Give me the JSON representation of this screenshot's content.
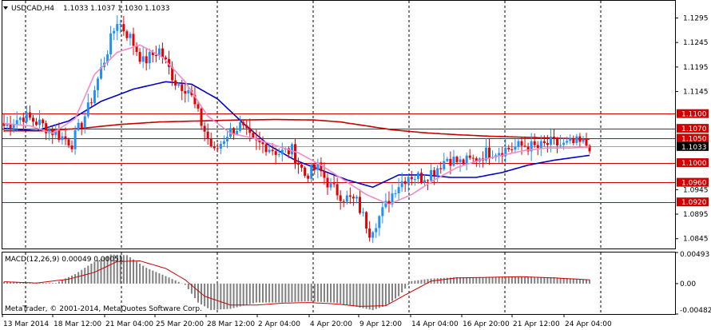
{
  "header": {
    "symbol": "USDCAD,H4",
    "open": "1.1033",
    "high": "1.1037",
    "low": "1.1030",
    "close": "1.1033",
    "collapse_icon": "triangle-down-icon"
  },
  "footer": {
    "copyright": "MetaTrader, © 2001-2014, MetaQuotes Software Corp."
  },
  "colors": {
    "bull": "#1e90ff",
    "bear": "#e60000",
    "ma_fast": "#f08cc8",
    "ma_mid": "#0000c8",
    "ma_slow": "#c80000",
    "level_line": "#d00000",
    "level_label_bg": "#d00000",
    "price_label_bg": "#000000",
    "macd_hist": "#808080",
    "macd_signal": "#d00000",
    "grid_vertical": "#000000",
    "bid_line": "#a0a0a0"
  },
  "chart_data": [
    {
      "type": "candlestick",
      "title": "USDCAD,H4",
      "ylim": [
        1.0825,
        1.133
      ],
      "y_ticks": [
        1.1295,
        1.1245,
        1.1195,
        1.1145,
        1.0945,
        1.0895,
        1.0845
      ],
      "current_price": 1.1033,
      "levels": [
        1.11,
        1.107,
        1.105,
        1.1,
        1.096,
        1.092
      ],
      "x_labels": [
        "13 Mar 2014",
        "18 Mar 12:00",
        "21 Mar 04:00",
        "25 Mar 20:00",
        "28 Mar 12:00",
        "2 Apr 04:00",
        "4 Apr 20:00",
        "9 Apr 12:00",
        "14 Apr 04:00",
        "16 Apr 20:00",
        "21 Apr 12:00",
        "24 Apr 04:00"
      ],
      "anchors": [
        [
          0,
          1.1075
        ],
        [
          6,
          1.1095
        ],
        [
          11,
          1.108
        ],
        [
          16,
          1.106
        ],
        [
          21,
          1.104
        ],
        [
          26,
          1.111
        ],
        [
          31,
          1.121
        ],
        [
          35,
          1.129
        ],
        [
          39,
          1.1255
        ],
        [
          43,
          1.1205
        ],
        [
          48,
          1.123
        ],
        [
          53,
          1.1165
        ],
        [
          57,
          1.115
        ],
        [
          61,
          1.108
        ],
        [
          65,
          1.102
        ],
        [
          69,
          1.106
        ],
        [
          73,
          1.1075
        ],
        [
          77,
          1.104
        ],
        [
          81,
          1.1035
        ],
        [
          85,
          1.102
        ],
        [
          89,
          1.1025
        ],
        [
          93,
          1.0975
        ],
        [
          97,
          1.099
        ],
        [
          101,
          1.095
        ],
        [
          105,
          1.093
        ],
        [
          109,
          1.092
        ],
        [
          113,
          1.086
        ],
        [
          117,
          1.09
        ],
        [
          121,
          1.095
        ],
        [
          125,
          1.0975
        ],
        [
          129,
          1.097
        ],
        [
          133,
          1.0985
        ],
        [
          137,
          1.101
        ],
        [
          141,
          1.1
        ],
        [
          145,
          1.1005
        ],
        [
          149,
          1.102
        ],
        [
          153,
          1.1025
        ],
        [
          157,
          1.103
        ],
        [
          161,
          1.1035
        ],
        [
          165,
          1.103
        ],
        [
          169,
          1.104
        ],
        [
          173,
          1.1035
        ],
        [
          177,
          1.104
        ],
        [
          181,
          1.1035
        ]
      ],
      "indicators": {
        "ma_fast": [
          [
            0,
            1.108
          ],
          [
            8,
            1.1075
          ],
          [
            15,
            1.106
          ],
          [
            22,
            1.109
          ],
          [
            28,
            1.118
          ],
          [
            35,
            1.1225
          ],
          [
            42,
            1.124
          ],
          [
            49,
            1.1215
          ],
          [
            56,
            1.1165
          ],
          [
            63,
            1.1095
          ],
          [
            70,
            1.106
          ],
          [
            77,
            1.105
          ],
          [
            84,
            1.1035
          ],
          [
            91,
            1.102
          ],
          [
            98,
            1.0995
          ],
          [
            105,
            1.0965
          ],
          [
            112,
            1.0935
          ],
          [
            119,
            1.0915
          ],
          [
            126,
            1.0935
          ],
          [
            133,
            1.0965
          ],
          [
            140,
            1.099
          ],
          [
            147,
            1.1005
          ],
          [
            154,
            1.1015
          ],
          [
            161,
            1.1025
          ],
          [
            168,
            1.103
          ],
          [
            175,
            1.103
          ],
          [
            181,
            1.1032
          ]
        ],
        "ma_mid": [
          [
            0,
            1.107
          ],
          [
            10,
            1.1065
          ],
          [
            20,
            1.1085
          ],
          [
            30,
            1.1125
          ],
          [
            40,
            1.115
          ],
          [
            50,
            1.1165
          ],
          [
            58,
            1.116
          ],
          [
            66,
            1.113
          ],
          [
            74,
            1.108
          ],
          [
            82,
            1.1035
          ],
          [
            90,
            1.1005
          ],
          [
            98,
            1.0985
          ],
          [
            106,
            1.0965
          ],
          [
            114,
            1.095
          ],
          [
            122,
            1.0975
          ],
          [
            130,
            1.0975
          ],
          [
            138,
            1.097
          ],
          [
            146,
            1.097
          ],
          [
            154,
            1.098
          ],
          [
            162,
            1.0995
          ],
          [
            170,
            1.1005
          ],
          [
            181,
            1.1015
          ]
        ],
        "ma_slow": [
          [
            0,
            1.1065
          ],
          [
            12,
            1.1065
          ],
          [
            24,
            1.107
          ],
          [
            36,
            1.1078
          ],
          [
            48,
            1.1083
          ],
          [
            60,
            1.1085
          ],
          [
            72,
            1.1087
          ],
          [
            84,
            1.1088
          ],
          [
            96,
            1.1087
          ],
          [
            104,
            1.1083
          ],
          [
            112,
            1.1075
          ],
          [
            120,
            1.1067
          ],
          [
            130,
            1.1061
          ],
          [
            140,
            1.1057
          ],
          [
            150,
            1.1054
          ],
          [
            160,
            1.1052
          ],
          [
            170,
            1.105
          ],
          [
            181,
            1.1048
          ]
        ]
      }
    },
    {
      "type": "bar",
      "title": "MACD(12,26,9) 0.00049 0.00051",
      "ylim": [
        -0.00482,
        0.00493
      ],
      "y_ticks": [
        0.00493,
        0.0,
        -0.00482
      ],
      "y_tick_labels": [
        "0.00493",
        "0.00",
        "-0.00482"
      ],
      "histogram": [
        [
          0,
          0.0003
        ],
        [
          8,
          0.0001
        ],
        [
          16,
          0.0001
        ],
        [
          22,
          0.0015
        ],
        [
          28,
          0.0035
        ],
        [
          33,
          0.0046
        ],
        [
          38,
          0.0045
        ],
        [
          44,
          0.0025
        ],
        [
          50,
          0.0012
        ],
        [
          56,
          -0.0002
        ],
        [
          60,
          -0.003
        ],
        [
          64,
          -0.0042
        ],
        [
          70,
          -0.004
        ],
        [
          78,
          -0.003
        ],
        [
          86,
          -0.003
        ],
        [
          94,
          -0.0028
        ],
        [
          102,
          -0.003
        ],
        [
          110,
          -0.0038
        ],
        [
          114,
          -0.0042
        ],
        [
          118,
          -0.0035
        ],
        [
          122,
          -0.002
        ],
        [
          126,
          0.0004
        ],
        [
          132,
          0.0008
        ],
        [
          140,
          0.001
        ],
        [
          148,
          0.001
        ],
        [
          156,
          0.0011
        ],
        [
          162,
          0.0011
        ],
        [
          170,
          0.001
        ],
        [
          176,
          0.0008
        ],
        [
          181,
          0.0006
        ]
      ],
      "signal": [
        [
          0,
          0.0003
        ],
        [
          10,
          0.0001
        ],
        [
          20,
          0.0007
        ],
        [
          28,
          0.0018
        ],
        [
          35,
          0.0035
        ],
        [
          42,
          0.0036
        ],
        [
          50,
          0.0024
        ],
        [
          56,
          0.0006
        ],
        [
          62,
          -0.002
        ],
        [
          70,
          -0.0034
        ],
        [
          78,
          -0.0034
        ],
        [
          86,
          -0.0031
        ],
        [
          94,
          -0.003
        ],
        [
          102,
          -0.0032
        ],
        [
          110,
          -0.0036
        ],
        [
          118,
          -0.0035
        ],
        [
          124,
          -0.0018
        ],
        [
          132,
          0.0004
        ],
        [
          140,
          0.0009
        ],
        [
          150,
          0.001
        ],
        [
          160,
          0.0011
        ],
        [
          170,
          0.0009
        ],
        [
          181,
          0.0006
        ]
      ]
    }
  ]
}
